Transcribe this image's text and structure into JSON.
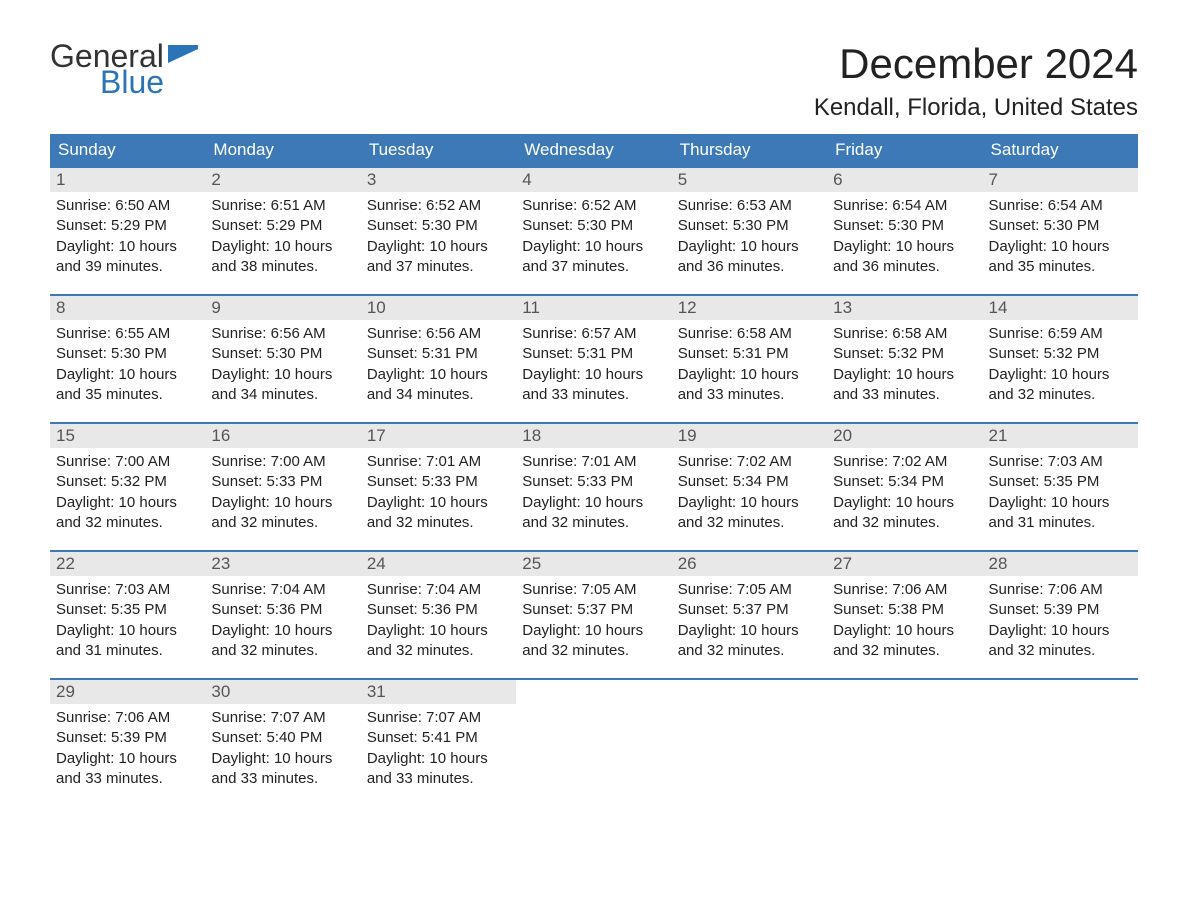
{
  "brand": {
    "general": "General",
    "blue": "Blue"
  },
  "title": "December 2024",
  "location": "Kendall, Florida, United States",
  "colors": {
    "header_bg": "#3d79b6",
    "header_text": "#ffffff",
    "daynum_bg": "#e8e8e8",
    "daynum_text": "#555555",
    "rule": "#3d79b6",
    "logo_blue": "#2b74b8"
  },
  "labels": {
    "sunrise": "Sunrise:",
    "sunset": "Sunset:",
    "daylight": "Daylight:"
  },
  "dow": [
    "Sunday",
    "Monday",
    "Tuesday",
    "Wednesday",
    "Thursday",
    "Friday",
    "Saturday"
  ],
  "days": [
    {
      "n": 1,
      "sunrise": "6:50 AM",
      "sunset": "5:29 PM",
      "daylight": "10 hours and 39 minutes."
    },
    {
      "n": 2,
      "sunrise": "6:51 AM",
      "sunset": "5:29 PM",
      "daylight": "10 hours and 38 minutes."
    },
    {
      "n": 3,
      "sunrise": "6:52 AM",
      "sunset": "5:30 PM",
      "daylight": "10 hours and 37 minutes."
    },
    {
      "n": 4,
      "sunrise": "6:52 AM",
      "sunset": "5:30 PM",
      "daylight": "10 hours and 37 minutes."
    },
    {
      "n": 5,
      "sunrise": "6:53 AM",
      "sunset": "5:30 PM",
      "daylight": "10 hours and 36 minutes."
    },
    {
      "n": 6,
      "sunrise": "6:54 AM",
      "sunset": "5:30 PM",
      "daylight": "10 hours and 36 minutes."
    },
    {
      "n": 7,
      "sunrise": "6:54 AM",
      "sunset": "5:30 PM",
      "daylight": "10 hours and 35 minutes."
    },
    {
      "n": 8,
      "sunrise": "6:55 AM",
      "sunset": "5:30 PM",
      "daylight": "10 hours and 35 minutes."
    },
    {
      "n": 9,
      "sunrise": "6:56 AM",
      "sunset": "5:30 PM",
      "daylight": "10 hours and 34 minutes."
    },
    {
      "n": 10,
      "sunrise": "6:56 AM",
      "sunset": "5:31 PM",
      "daylight": "10 hours and 34 minutes."
    },
    {
      "n": 11,
      "sunrise": "6:57 AM",
      "sunset": "5:31 PM",
      "daylight": "10 hours and 33 minutes."
    },
    {
      "n": 12,
      "sunrise": "6:58 AM",
      "sunset": "5:31 PM",
      "daylight": "10 hours and 33 minutes."
    },
    {
      "n": 13,
      "sunrise": "6:58 AM",
      "sunset": "5:32 PM",
      "daylight": "10 hours and 33 minutes."
    },
    {
      "n": 14,
      "sunrise": "6:59 AM",
      "sunset": "5:32 PM",
      "daylight": "10 hours and 32 minutes."
    },
    {
      "n": 15,
      "sunrise": "7:00 AM",
      "sunset": "5:32 PM",
      "daylight": "10 hours and 32 minutes."
    },
    {
      "n": 16,
      "sunrise": "7:00 AM",
      "sunset": "5:33 PM",
      "daylight": "10 hours and 32 minutes."
    },
    {
      "n": 17,
      "sunrise": "7:01 AM",
      "sunset": "5:33 PM",
      "daylight": "10 hours and 32 minutes."
    },
    {
      "n": 18,
      "sunrise": "7:01 AM",
      "sunset": "5:33 PM",
      "daylight": "10 hours and 32 minutes."
    },
    {
      "n": 19,
      "sunrise": "7:02 AM",
      "sunset": "5:34 PM",
      "daylight": "10 hours and 32 minutes."
    },
    {
      "n": 20,
      "sunrise": "7:02 AM",
      "sunset": "5:34 PM",
      "daylight": "10 hours and 32 minutes."
    },
    {
      "n": 21,
      "sunrise": "7:03 AM",
      "sunset": "5:35 PM",
      "daylight": "10 hours and 31 minutes."
    },
    {
      "n": 22,
      "sunrise": "7:03 AM",
      "sunset": "5:35 PM",
      "daylight": "10 hours and 31 minutes."
    },
    {
      "n": 23,
      "sunrise": "7:04 AM",
      "sunset": "5:36 PM",
      "daylight": "10 hours and 32 minutes."
    },
    {
      "n": 24,
      "sunrise": "7:04 AM",
      "sunset": "5:36 PM",
      "daylight": "10 hours and 32 minutes."
    },
    {
      "n": 25,
      "sunrise": "7:05 AM",
      "sunset": "5:37 PM",
      "daylight": "10 hours and 32 minutes."
    },
    {
      "n": 26,
      "sunrise": "7:05 AM",
      "sunset": "5:37 PM",
      "daylight": "10 hours and 32 minutes."
    },
    {
      "n": 27,
      "sunrise": "7:06 AM",
      "sunset": "5:38 PM",
      "daylight": "10 hours and 32 minutes."
    },
    {
      "n": 28,
      "sunrise": "7:06 AM",
      "sunset": "5:39 PM",
      "daylight": "10 hours and 32 minutes."
    },
    {
      "n": 29,
      "sunrise": "7:06 AM",
      "sunset": "5:39 PM",
      "daylight": "10 hours and 33 minutes."
    },
    {
      "n": 30,
      "sunrise": "7:07 AM",
      "sunset": "5:40 PM",
      "daylight": "10 hours and 33 minutes."
    },
    {
      "n": 31,
      "sunrise": "7:07 AM",
      "sunset": "5:41 PM",
      "daylight": "10 hours and 33 minutes."
    }
  ],
  "layout": {
    "start_offset": 0,
    "total_cells": 35
  }
}
